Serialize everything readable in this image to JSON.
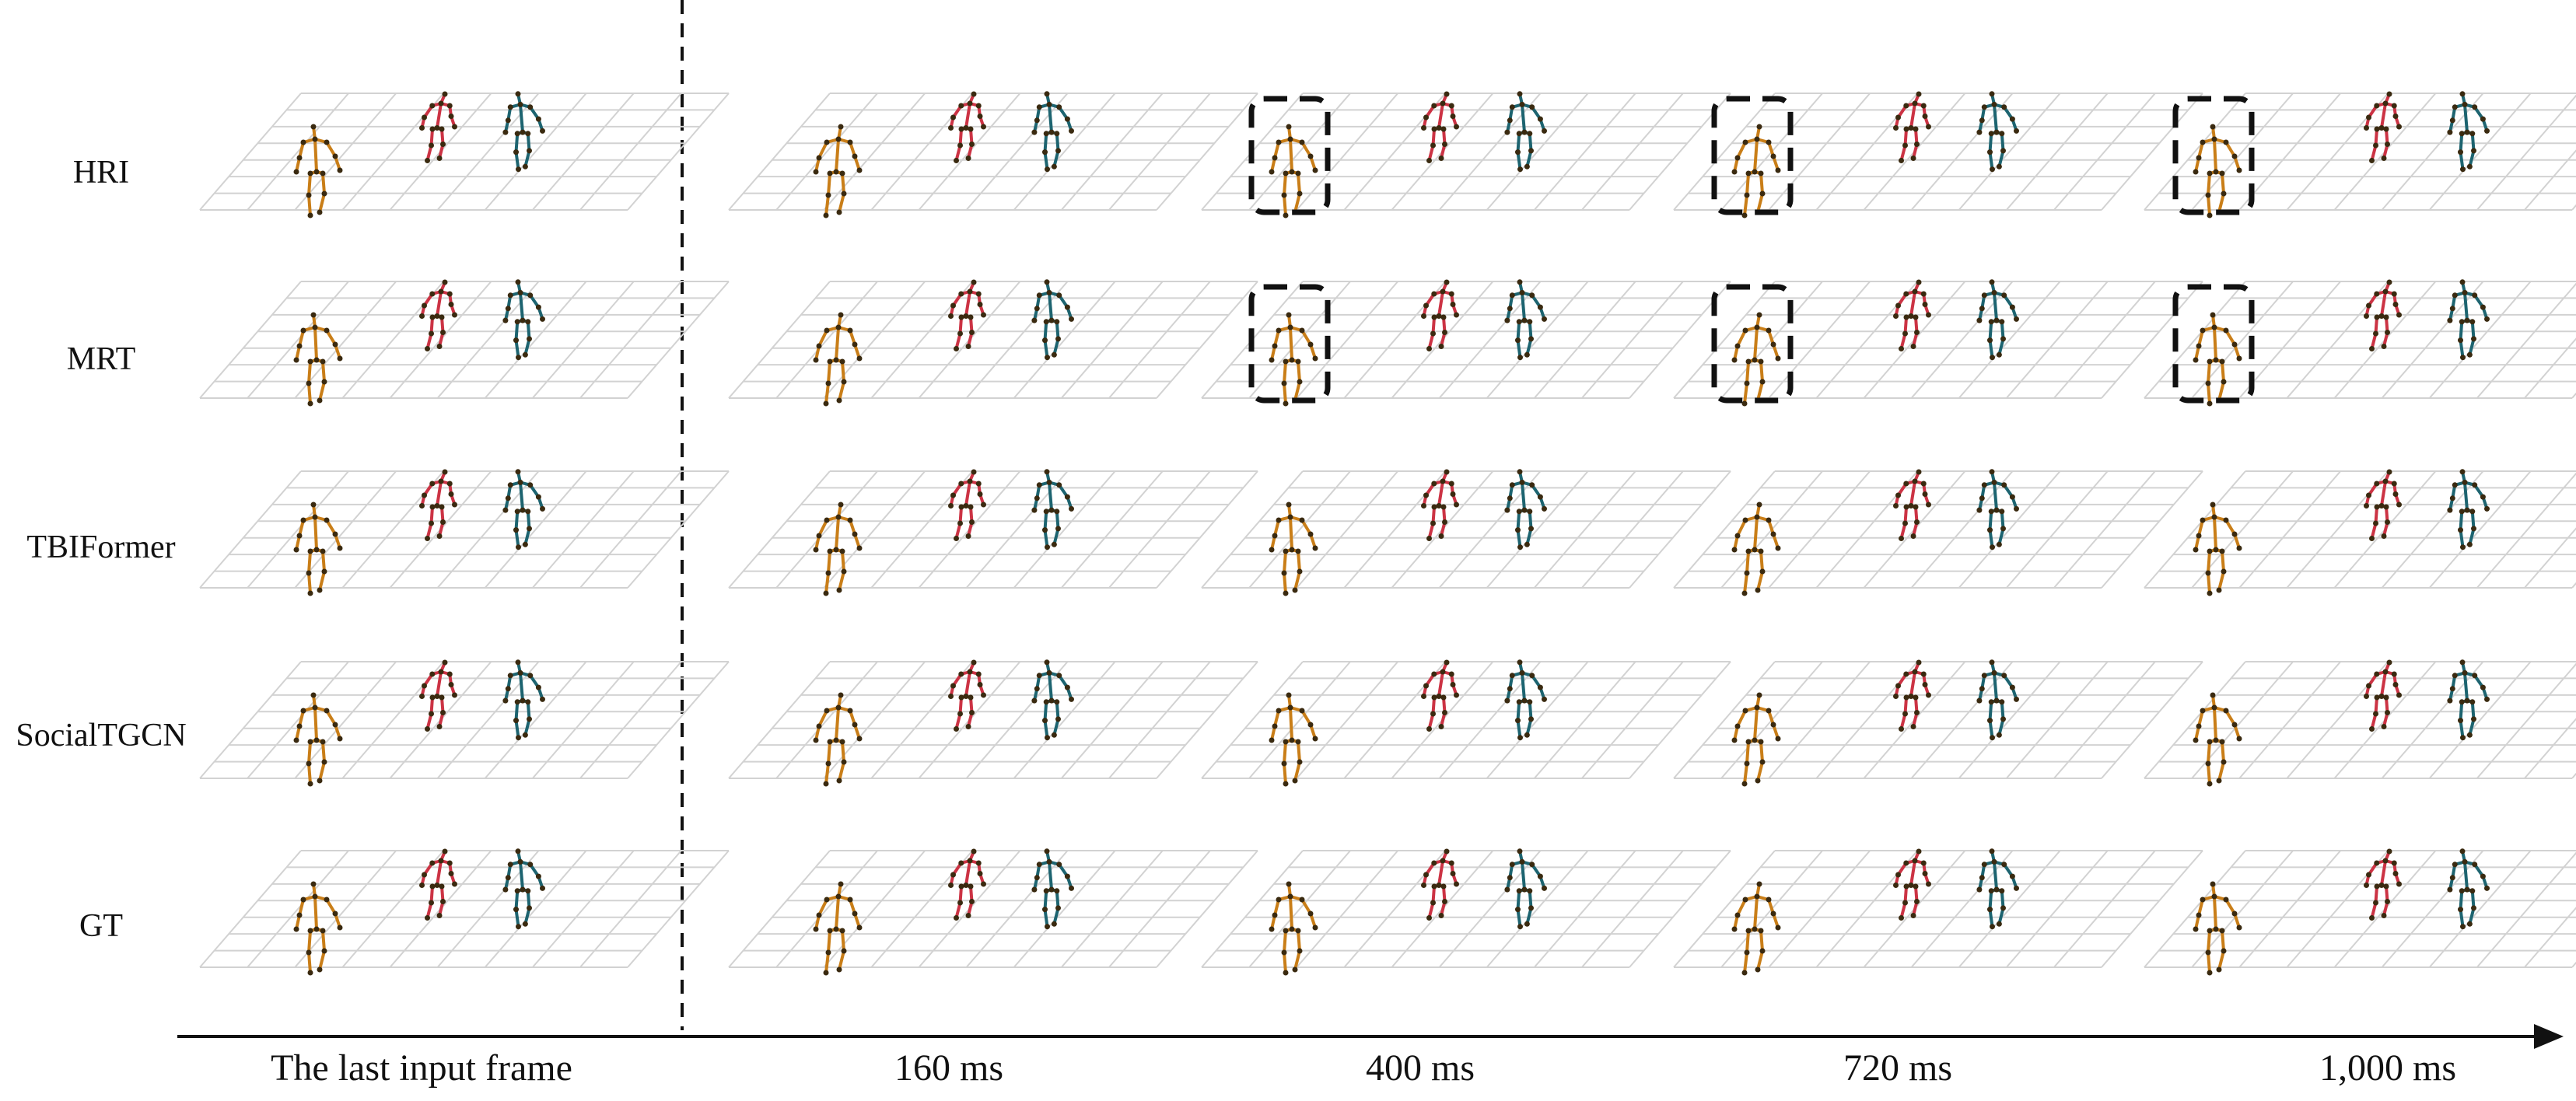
{
  "rows": [
    {
      "label": "HRI",
      "highlight": [
        false,
        false,
        true,
        true,
        true
      ]
    },
    {
      "label": "MRT",
      "highlight": [
        false,
        false,
        true,
        true,
        true
      ]
    },
    {
      "label": "TBIFormer",
      "highlight": [
        false,
        false,
        false,
        false,
        false
      ]
    },
    {
      "label": "SocialTGCN",
      "highlight": [
        false,
        false,
        false,
        false,
        false
      ]
    },
    {
      "label": "GT",
      "highlight": [
        false,
        false,
        false,
        false,
        false
      ]
    }
  ],
  "columns": [
    "The last input frame",
    "160 ms",
    "400 ms",
    "720 ms",
    "1,000 ms"
  ],
  "colors": {
    "grid": "#d2d2d2",
    "orange_person": "#c97e18",
    "red_person": "#cc3344",
    "teal_person": "#1d6470",
    "joints": "#3a2a10",
    "highlight_box": "#111111"
  }
}
